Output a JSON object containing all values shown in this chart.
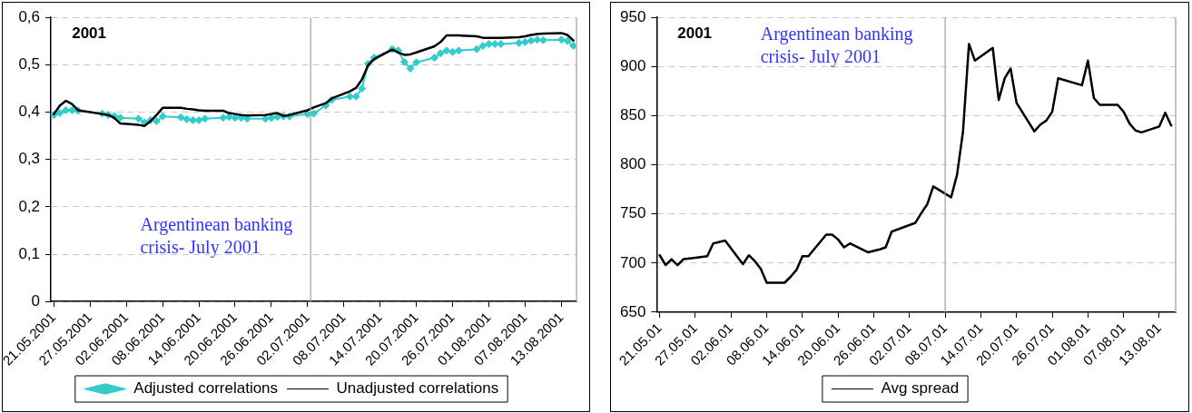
{
  "chart_data": [
    {
      "type": "line",
      "xlim": [
        "2001-05-20T12:00",
        "2001-08-15T12:00"
      ],
      "xticks": [
        {
          "value": "2001-05-21",
          "label": "21.05.2001"
        },
        {
          "value": "2001-05-27",
          "label": "27.05.2001"
        },
        {
          "value": "2001-06-02",
          "label": "02.06.2001"
        },
        {
          "value": "2001-06-08",
          "label": "08.06.2001"
        },
        {
          "value": "2001-06-14",
          "label": "14.06.2001"
        },
        {
          "value": "2001-06-20",
          "label": "20.06.2001"
        },
        {
          "value": "2001-06-26",
          "label": "26.06.2001"
        },
        {
          "value": "2001-07-02",
          "label": "02.07.2001"
        },
        {
          "value": "2001-07-08",
          "label": "08.07.2001"
        },
        {
          "value": "2001-07-14",
          "label": "14.07.2001"
        },
        {
          "value": "2001-07-20",
          "label": "20.07.2001"
        },
        {
          "value": "2001-07-26",
          "label": "26.07.2001"
        },
        {
          "value": "2001-08-01",
          "label": "01.08.2001"
        },
        {
          "value": "2001-08-07",
          "label": "07.08.2001"
        },
        {
          "value": "2001-08-13",
          "label": "13.08.2001"
        }
      ],
      "ylim": [
        0,
        0.6
      ],
      "yticks": [
        0,
        {
          "value": 0.1,
          "label": "0,1"
        },
        {
          "value": 0.2,
          "label": "0,2"
        },
        {
          "value": 0.3,
          "label": "0,3"
        },
        {
          "value": 0.4,
          "label": "0,4"
        },
        {
          "value": 0.5,
          "label": "0,5"
        },
        {
          "value": 0.6,
          "label": "0,6"
        }
      ],
      "grid": "y",
      "legend": "bottom",
      "ref_lines": [
        {
          "axis": "x",
          "value": "2001-07-02T12:00",
          "color": "#a0a0a0"
        }
      ],
      "annotations": [
        "2001",
        "Argentinean banking crisis- July 2001"
      ],
      "series": [
        {
          "name": "Adjusted correlations",
          "color": "#33cccc",
          "marker": "diamond",
          "x": [
            "2001-05-21",
            "2001-05-22",
            "2001-05-23",
            "2001-05-24",
            "2001-05-25",
            "2001-05-29",
            "2001-05-30",
            "2001-05-31",
            "2001-06-01",
            "2001-06-04",
            "2001-06-05",
            "2001-06-06",
            "2001-06-07",
            "2001-06-08",
            "2001-06-11",
            "2001-06-12",
            "2001-06-13",
            "2001-06-14",
            "2001-06-15",
            "2001-06-18",
            "2001-06-19",
            "2001-06-20",
            "2001-06-21",
            "2001-06-22",
            "2001-06-25",
            "2001-06-26",
            "2001-06-27",
            "2001-06-28",
            "2001-06-29",
            "2001-07-02",
            "2001-07-03",
            "2001-07-05",
            "2001-07-06",
            "2001-07-09",
            "2001-07-10",
            "2001-07-11",
            "2001-07-12",
            "2001-07-13",
            "2001-07-16",
            "2001-07-17",
            "2001-07-18",
            "2001-07-19",
            "2001-07-20",
            "2001-07-23",
            "2001-07-24",
            "2001-07-25",
            "2001-07-26",
            "2001-07-27",
            "2001-07-30",
            "2001-07-31",
            "2001-08-01",
            "2001-08-02",
            "2001-08-03",
            "2001-08-06",
            "2001-08-07",
            "2001-08-08",
            "2001-08-09",
            "2001-08-10",
            "2001-08-13",
            "2001-08-14",
            "2001-08-15"
          ],
          "values": [
            0.394,
            0.398,
            0.404,
            0.404,
            0.403,
            0.397,
            0.394,
            0.392,
            0.388,
            0.386,
            0.378,
            0.383,
            0.381,
            0.391,
            0.389,
            0.385,
            0.383,
            0.383,
            0.386,
            0.388,
            0.39,
            0.388,
            0.388,
            0.386,
            0.386,
            0.388,
            0.39,
            0.391,
            0.391,
            0.396,
            0.397,
            0.414,
            0.426,
            0.433,
            0.433,
            0.45,
            0.502,
            0.515,
            0.533,
            0.53,
            0.506,
            0.492,
            0.505,
            0.515,
            0.524,
            0.53,
            0.527,
            0.53,
            0.533,
            0.54,
            0.544,
            0.544,
            0.544,
            0.546,
            0.548,
            0.551,
            0.553,
            0.552,
            0.553,
            0.55,
            0.54
          ]
        },
        {
          "name": "Unadjusted correlations",
          "color": "#000000",
          "marker": "none",
          "x": [
            "2001-05-21",
            "2001-05-22",
            "2001-05-23",
            "2001-05-24",
            "2001-05-25",
            "2001-05-29",
            "2001-05-30",
            "2001-05-31",
            "2001-06-01",
            "2001-06-04",
            "2001-06-05",
            "2001-06-06",
            "2001-06-07",
            "2001-06-08",
            "2001-06-11",
            "2001-06-12",
            "2001-06-13",
            "2001-06-14",
            "2001-06-15",
            "2001-06-18",
            "2001-06-19",
            "2001-06-20",
            "2001-06-21",
            "2001-06-22",
            "2001-06-25",
            "2001-06-26",
            "2001-06-27",
            "2001-06-28",
            "2001-06-29",
            "2001-07-02",
            "2001-07-03",
            "2001-07-05",
            "2001-07-06",
            "2001-07-09",
            "2001-07-10",
            "2001-07-11",
            "2001-07-12",
            "2001-07-13",
            "2001-07-16",
            "2001-07-17",
            "2001-07-18",
            "2001-07-19",
            "2001-07-20",
            "2001-07-23",
            "2001-07-24",
            "2001-07-25",
            "2001-07-26",
            "2001-07-27",
            "2001-07-30",
            "2001-07-31",
            "2001-08-01",
            "2001-08-02",
            "2001-08-03",
            "2001-08-06",
            "2001-08-07",
            "2001-08-08",
            "2001-08-09",
            "2001-08-10",
            "2001-08-13",
            "2001-08-14",
            "2001-08-15"
          ],
          "values": [
            0.396,
            0.414,
            0.424,
            0.417,
            0.404,
            0.396,
            0.394,
            0.388,
            0.376,
            0.373,
            0.371,
            0.381,
            0.394,
            0.409,
            0.409,
            0.407,
            0.406,
            0.404,
            0.403,
            0.403,
            0.398,
            0.396,
            0.394,
            0.393,
            0.394,
            0.396,
            0.398,
            0.392,
            0.394,
            0.404,
            0.41,
            0.419,
            0.429,
            0.444,
            0.451,
            0.469,
            0.499,
            0.512,
            0.532,
            0.526,
            0.521,
            0.522,
            0.526,
            0.539,
            0.548,
            0.562,
            0.562,
            0.562,
            0.56,
            0.557,
            0.557,
            0.557,
            0.557,
            0.558,
            0.56,
            0.563,
            0.565,
            0.566,
            0.567,
            0.563,
            0.551
          ]
        }
      ]
    },
    {
      "type": "line",
      "xlim": [
        "2001-05-20T12:00",
        "2001-08-15T18:00"
      ],
      "xticks": [
        {
          "value": "2001-05-21",
          "label": "21.05.01"
        },
        {
          "value": "2001-05-27",
          "label": "27.05.01"
        },
        {
          "value": "2001-06-02",
          "label": "02.06.01"
        },
        {
          "value": "2001-06-08",
          "label": "08.06.01"
        },
        {
          "value": "2001-06-14",
          "label": "14.06.01"
        },
        {
          "value": "2001-06-20",
          "label": "20.06.01"
        },
        {
          "value": "2001-06-26",
          "label": "26.06.01"
        },
        {
          "value": "2001-07-02",
          "label": "02.07.01"
        },
        {
          "value": "2001-07-08",
          "label": "08.07.01"
        },
        {
          "value": "2001-07-14",
          "label": "14.07.01"
        },
        {
          "value": "2001-07-20",
          "label": "20.07.01"
        },
        {
          "value": "2001-07-26",
          "label": "26.07.01"
        },
        {
          "value": "2001-08-01",
          "label": "01.08.01"
        },
        {
          "value": "2001-08-07",
          "label": "07.08.01"
        },
        {
          "value": "2001-08-13",
          "label": "13.08.01"
        }
      ],
      "ylim": [
        650,
        950
      ],
      "yticks": [
        650,
        700,
        750,
        800,
        850,
        900,
        950
      ],
      "grid": "y",
      "legend": "bottom",
      "ref_lines": [
        {
          "axis": "x",
          "value": "2001-07-08",
          "color": "#a0a0a0"
        }
      ],
      "annotations": [
        "2001",
        "Argentinean banking crisis- July 2001"
      ],
      "series": [
        {
          "name": "Avg spread",
          "color": "#000000",
          "marker": "none",
          "x": [
            "2001-05-21",
            "2001-05-22",
            "2001-05-23",
            "2001-05-24",
            "2001-05-25",
            "2001-05-29",
            "2001-05-30",
            "2001-06-01",
            "2001-06-04",
            "2001-06-05",
            "2001-06-06",
            "2001-06-07",
            "2001-06-08",
            "2001-06-11",
            "2001-06-12",
            "2001-06-13",
            "2001-06-14",
            "2001-06-15",
            "2001-06-18",
            "2001-06-19",
            "2001-06-20",
            "2001-06-21",
            "2001-06-22",
            "2001-06-25",
            "2001-06-27",
            "2001-06-28",
            "2001-06-29",
            "2001-07-03",
            "2001-07-04",
            "2001-07-05",
            "2001-07-06",
            "2001-07-09",
            "2001-07-10",
            "2001-07-11",
            "2001-07-12",
            "2001-07-13",
            "2001-07-16",
            "2001-07-17",
            "2001-07-18",
            "2001-07-19",
            "2001-07-20",
            "2001-07-23",
            "2001-07-24",
            "2001-07-25",
            "2001-07-26",
            "2001-07-27",
            "2001-07-31",
            "2001-08-01",
            "2001-08-02",
            "2001-08-03",
            "2001-08-06",
            "2001-08-07",
            "2001-08-08",
            "2001-08-09",
            "2001-08-10",
            "2001-08-13",
            "2001-08-14",
            "2001-08-15"
          ],
          "values": [
            708,
            698,
            704,
            698,
            704,
            707,
            720,
            723,
            699,
            708,
            702,
            694,
            680,
            680,
            686,
            693,
            707,
            707,
            729,
            729,
            724,
            716,
            720,
            711,
            714,
            716,
            732,
            741,
            751,
            760,
            778,
            767,
            790,
            834,
            923,
            906,
            919,
            866,
            888,
            898,
            863,
            834,
            841,
            845,
            854,
            888,
            881,
            906,
            868,
            861,
            861,
            854,
            842,
            835,
            833,
            839,
            853,
            840
          ]
        }
      ]
    }
  ]
}
